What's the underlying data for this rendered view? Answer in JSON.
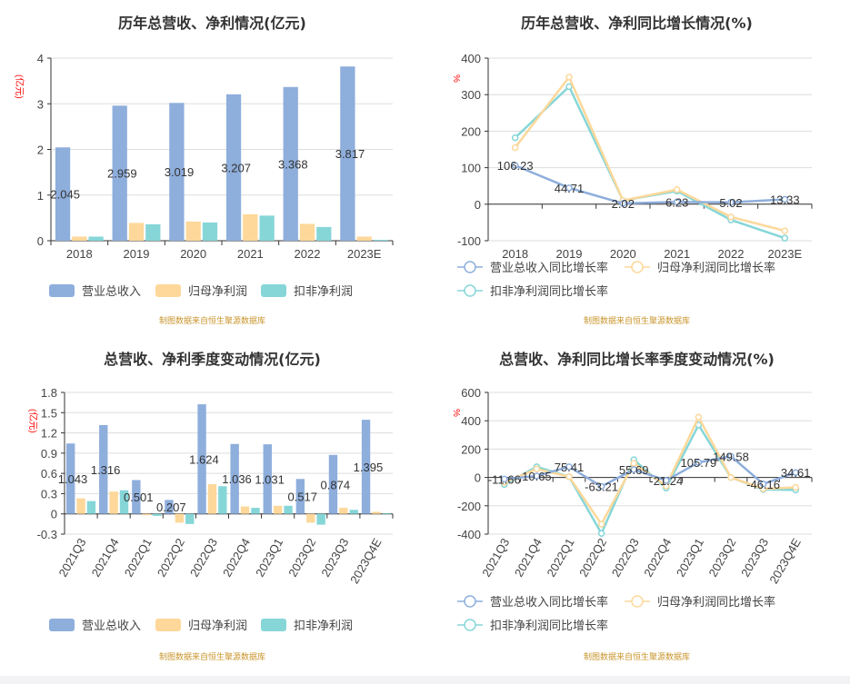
{
  "colors": {
    "revenue": "#8eaedc",
    "net_profit": "#fdd89a",
    "deducted_profit": "#86d6d8",
    "unit_label": "#ff0000",
    "footer": "#c8952b"
  },
  "footer": "制图数据来自恒生聚源数据库",
  "chart_data": [
    {
      "type": "bar",
      "title": "历年总营收、净利情况(亿元)",
      "ylabel": "(亿元)",
      "ylim": [
        0,
        4
      ],
      "yticks": [
        0,
        1,
        2,
        3,
        4
      ],
      "grid": true,
      "legend": "bottom",
      "categories": [
        "2018",
        "2019",
        "2020",
        "2021",
        "2022",
        "2023E"
      ],
      "series": [
        {
          "name": "营业总收入",
          "values": [
            2.045,
            2.959,
            3.019,
            3.207,
            3.368,
            3.817
          ],
          "labels": [
            "2.045",
            "2.959",
            "3.019",
            "3.207",
            "3.368",
            "3.817"
          ]
        },
        {
          "name": "归母净利润",
          "values": [
            0.09,
            0.39,
            0.42,
            0.58,
            0.37,
            0.09
          ]
        },
        {
          "name": "扣非净利润",
          "values": [
            0.09,
            0.36,
            0.4,
            0.55,
            0.3,
            0.02
          ]
        }
      ]
    },
    {
      "type": "line",
      "title": "历年总营收、净利同比增长情况(%)",
      "ylabel": "%",
      "ylim": [
        -100,
        400
      ],
      "yticks": [
        -100,
        0,
        100,
        200,
        300,
        400
      ],
      "grid": true,
      "legend": "bottom",
      "categories": [
        "2018",
        "2019",
        "2020",
        "2021",
        "2022",
        "2023E"
      ],
      "series": [
        {
          "name": "营业总收入同比增长率",
          "values": [
            106.23,
            44.71,
            2.02,
            6.23,
            5.02,
            13.33
          ],
          "labels": [
            "106.23",
            "44.71",
            "2.02",
            "6.23",
            "5.02",
            "13.33"
          ]
        },
        {
          "name": "归母净利润同比增长率",
          "values": [
            155,
            348,
            10,
            40,
            -35,
            -73
          ]
        },
        {
          "name": "扣非净利润同比增长率",
          "values": [
            182,
            322,
            10,
            36,
            -43,
            -93
          ]
        }
      ]
    },
    {
      "type": "bar",
      "title": "总营收、净利季度变动情况(亿元)",
      "ylabel": "(亿元)",
      "ylim": [
        -0.3,
        1.8
      ],
      "yticks": [
        -0.3,
        0,
        0.3,
        0.6,
        0.9,
        1.2,
        1.5,
        1.8
      ],
      "grid": true,
      "legend": "bottom",
      "categories": [
        "2021Q3",
        "2021Q4",
        "2022Q1",
        "2022Q2",
        "2022Q3",
        "2022Q4",
        "2023Q1",
        "2023Q2",
        "2023Q3",
        "2023Q4E"
      ],
      "series": [
        {
          "name": "营业总收入",
          "values": [
            1.043,
            1.316,
            0.501,
            0.207,
            1.624,
            1.036,
            1.031,
            0.517,
            0.874,
            1.395
          ],
          "labels": [
            "1.043",
            "1.316",
            "0.501",
            "0.207",
            "1.624",
            "1.036",
            "1.031",
            "0.517",
            "0.874",
            "1.395"
          ]
        },
        {
          "name": "归母净利润",
          "values": [
            0.23,
            0.33,
            -0.02,
            -0.13,
            0.44,
            0.11,
            0.12,
            -0.13,
            0.09,
            0.03
          ]
        },
        {
          "name": "扣非净利润",
          "values": [
            0.19,
            0.35,
            -0.03,
            -0.15,
            0.41,
            0.09,
            0.12,
            -0.16,
            0.06,
            0.01
          ]
        }
      ]
    },
    {
      "type": "line",
      "title": "总营收、净利同比增长率季度变动情况(%)",
      "ylabel": "%",
      "ylim": [
        -400,
        600
      ],
      "yticks": [
        -400,
        -200,
        0,
        200,
        400,
        600
      ],
      "grid": true,
      "legend": "bottom",
      "categories": [
        "2021Q3",
        "2021Q4",
        "2022Q1",
        "2022Q2",
        "2022Q3",
        "2022Q4",
        "2023Q1",
        "2023Q2",
        "2023Q3",
        "2023Q4E"
      ],
      "series": [
        {
          "name": "营业总收入同比增长率",
          "values": [
            -11.66,
            10.65,
            75.41,
            -63.21,
            55.69,
            -21.24,
            105.79,
            149.58,
            -46.16,
            34.61
          ],
          "labels": [
            "-11.66",
            "10.65",
            "75.41",
            "-63.21",
            "55.69",
            "-21.24",
            "105.79",
            "149.58",
            "-46.16",
            "34.61"
          ]
        },
        {
          "name": "归母净利润同比增长率",
          "values": [
            -35,
            60,
            5,
            -330,
            100,
            -60,
            425,
            0,
            -80,
            -70
          ]
        },
        {
          "name": "扣非净利润同比增长率",
          "values": [
            -50,
            75,
            5,
            -395,
            125,
            -75,
            370,
            0,
            -85,
            -88
          ]
        }
      ]
    }
  ]
}
